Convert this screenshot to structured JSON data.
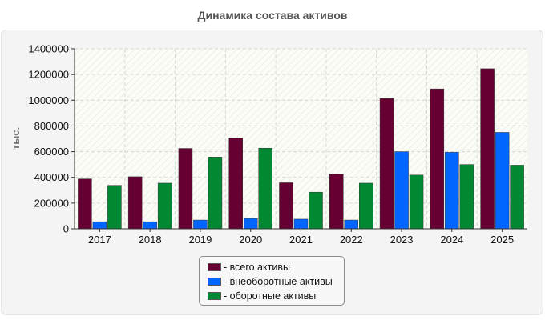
{
  "title": "Динамика состава активов",
  "chart_data": {
    "type": "bar",
    "title": "Динамика состава активов",
    "ylabel": "тыс.",
    "xlabel": "",
    "ylim": [
      0,
      1400000
    ],
    "yticks": [
      "0",
      "200000",
      "400000",
      "600000",
      "800000",
      "1000000",
      "1200000",
      "1400000"
    ],
    "grid": true,
    "legend_position": "bottom",
    "categories": [
      "2017",
      "2018",
      "2019",
      "2020",
      "2021",
      "2022",
      "2023",
      "2024",
      "2025"
    ],
    "series": [
      {
        "name": "всего активы",
        "color": "#660033",
        "values": [
          388000,
          405000,
          625000,
          705000,
          358000,
          425000,
          1013000,
          1088000,
          1245000
        ]
      },
      {
        "name": "внеоборотные активы",
        "color": "#0066ff",
        "values": [
          55000,
          55000,
          68000,
          80000,
          75000,
          68000,
          600000,
          595000,
          750000
        ]
      },
      {
        "name": "оборотные активы",
        "color": "#008833",
        "values": [
          338000,
          355000,
          558000,
          627000,
          285000,
          355000,
          418000,
          500000,
          495000
        ]
      }
    ]
  },
  "legend": [
    {
      "label": "- всего активы",
      "color": "#660033"
    },
    {
      "label": "- внеоборотные активы",
      "color": "#0066ff"
    },
    {
      "label": "- оборотные активы",
      "color": "#008833"
    }
  ]
}
